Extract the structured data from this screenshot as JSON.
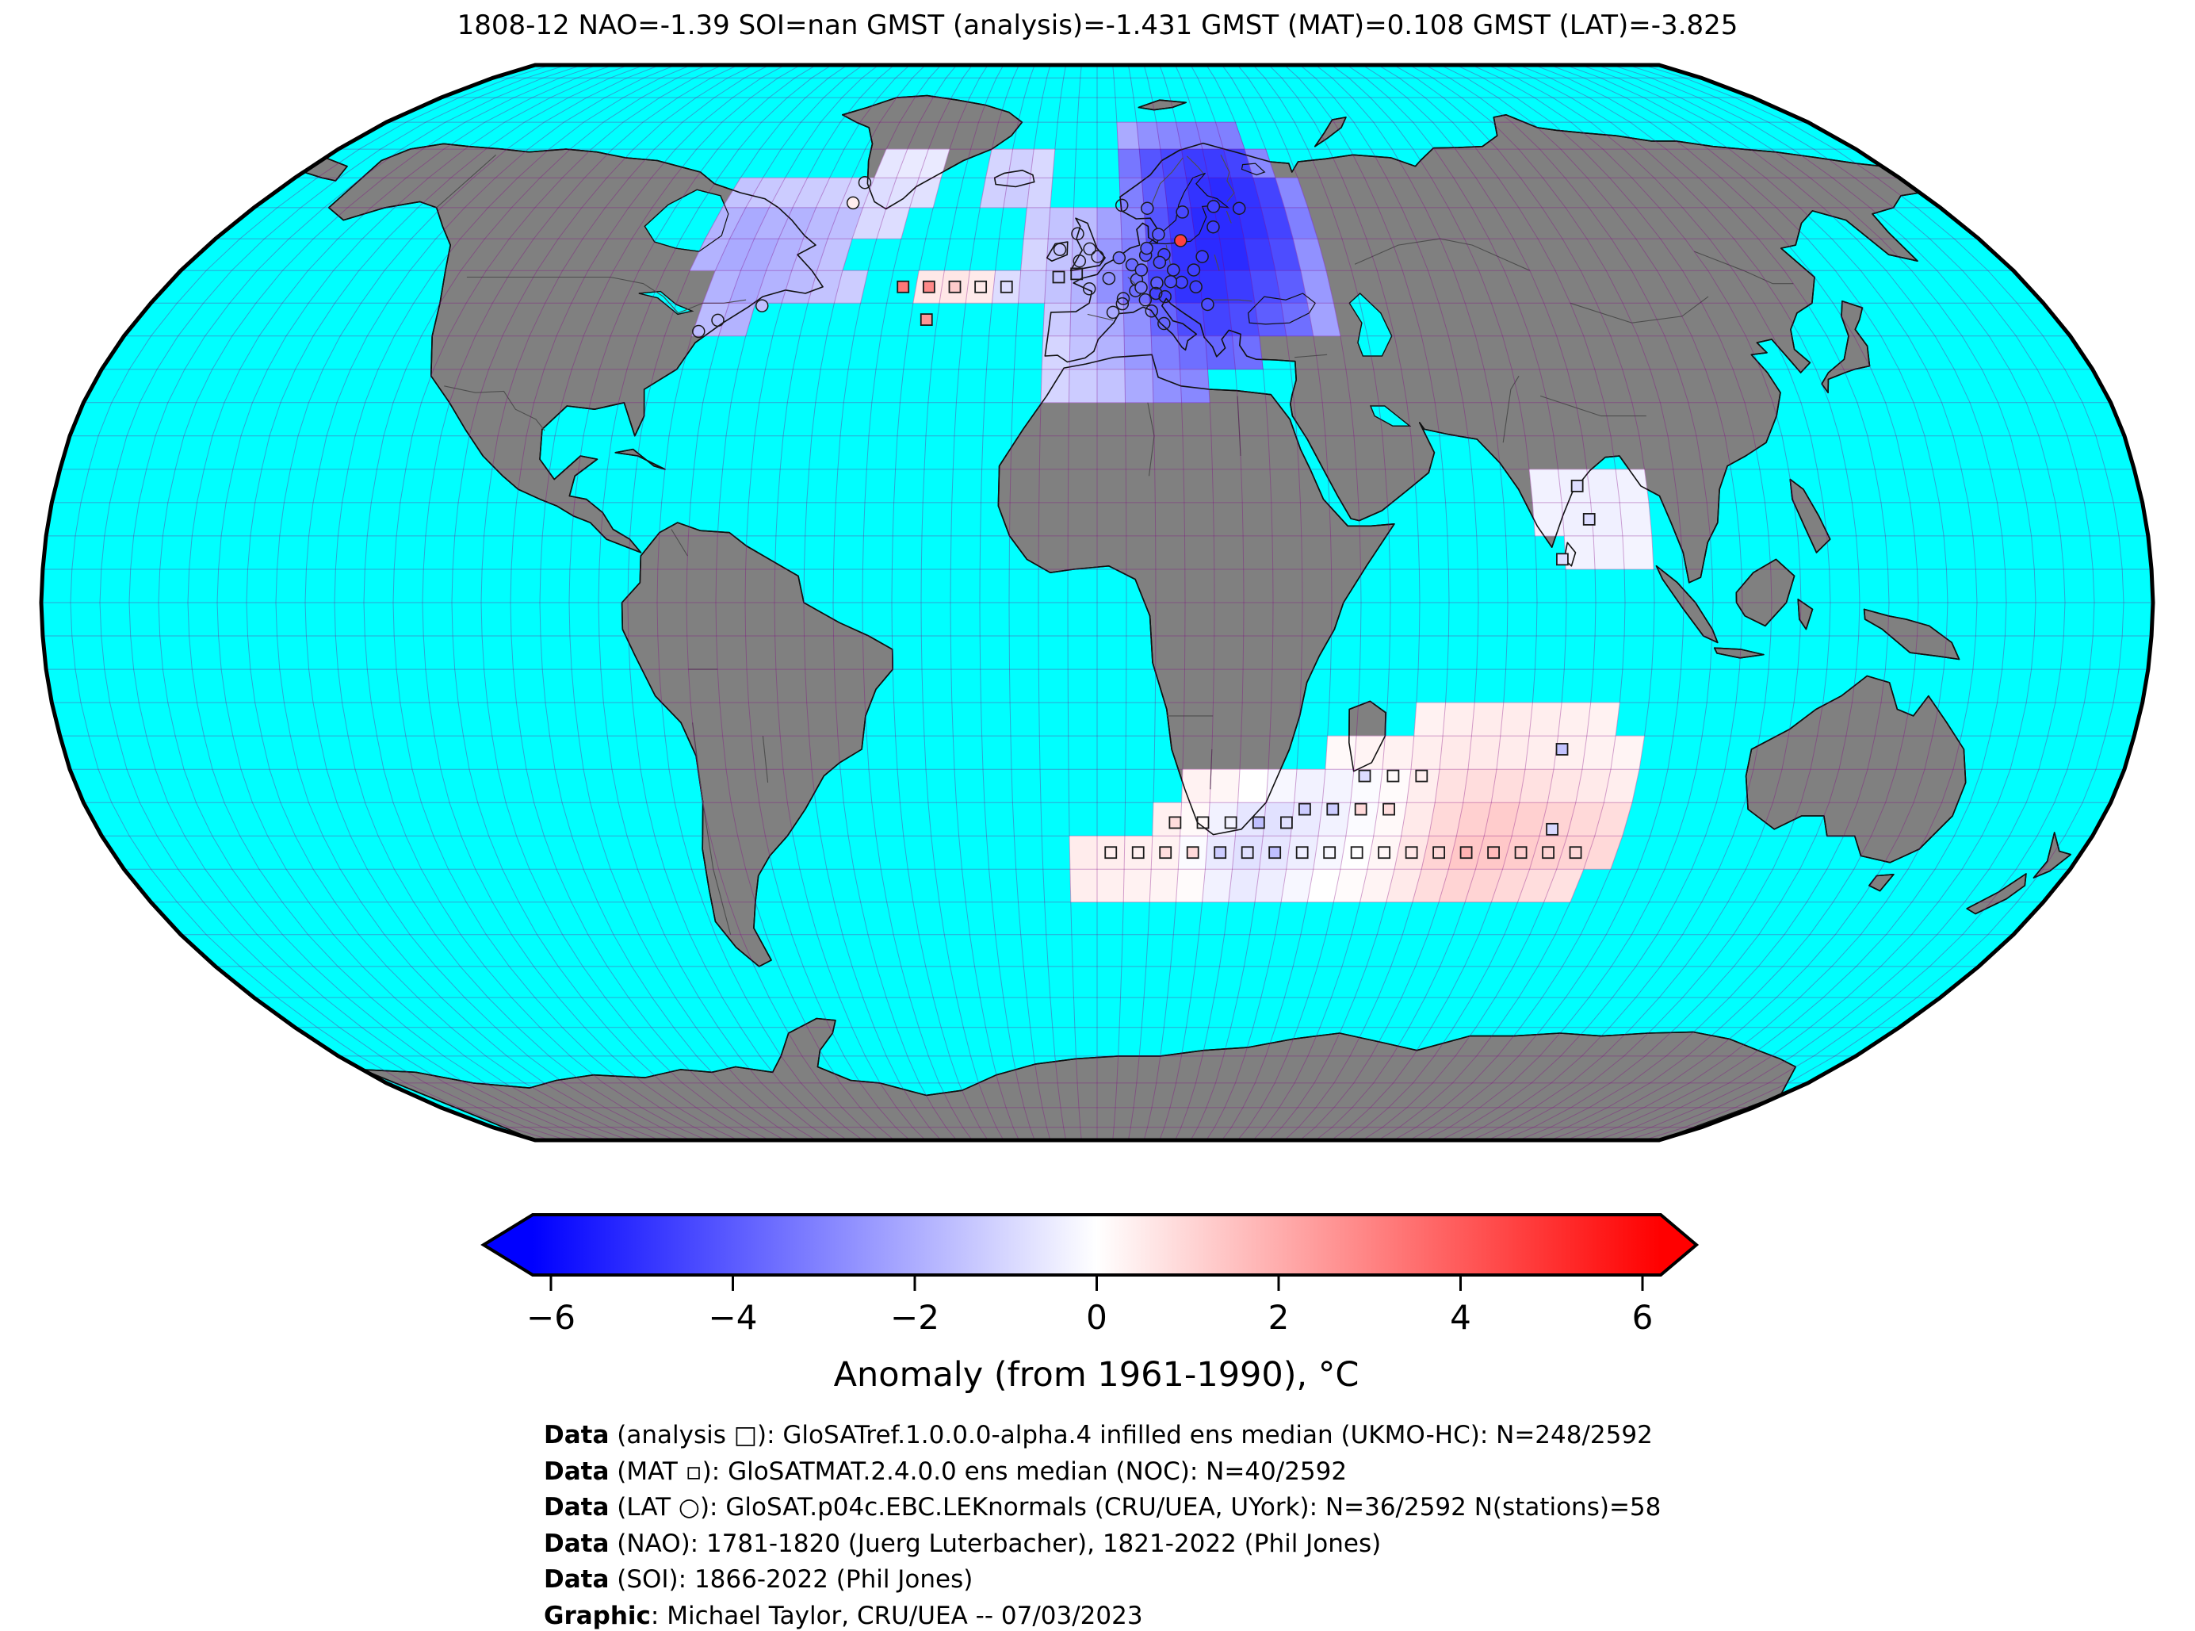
{
  "title": "1808-12 NAO=-1.39 SOI=nan GMST (analysis)=-1.431 GMST (MAT)=0.108 GMST (LAT)=-3.825",
  "map": {
    "ocean_color": "#00FFFF",
    "land_color": "#808080",
    "coastline_color": "#111111",
    "border_color": "#4d4d4d",
    "graticule_color": "#800080",
    "graticule_opacity": 0.35,
    "outline_color": "#000000"
  },
  "colorbar": {
    "label": "Anomaly (from 1961-1990), °C",
    "ticks": [
      "−6",
      "−4",
      "−2",
      "0",
      "2",
      "4",
      "6"
    ],
    "tick_values": [
      -6,
      -4,
      -2,
      0,
      2,
      4,
      6
    ],
    "min": -6,
    "max": 6,
    "colormap": {
      "name": "bwr",
      "neg": "#0000FF",
      "mid": "#FFFFFF",
      "pos": "#FF0000"
    }
  },
  "credits": [
    {
      "label": "Data",
      "text": " (analysis □): GloSATref.1.0.0.0-alpha.4 infilled ens median (UKMO-HC): N=248/2592"
    },
    {
      "label": "Data",
      "text": " (MAT ▫): GloSATMAT.2.4.0.0 ens median (NOC): N=40/2592"
    },
    {
      "label": "Data",
      "text": " (LAT ○): GloSAT.p04c.EBC.LEKnormals (CRU/UEA, UYork): N=36/2592 N(stations)=58"
    },
    {
      "label": "Data",
      "text": " (NAO): 1781-1820 (Juerg Luterbacher), 1821-2022 (Phil Jones)"
    },
    {
      "label": "Data",
      "text": " (SOI): 1866-2022 (Phil Jones)"
    },
    {
      "label": "Graphic",
      "text": ": Michael Taylor, CRU/UEA -- 07/03/2023"
    }
  ],
  "chart_data": {
    "type": "heatmap",
    "projection": "robinson",
    "units": "°C anomaly from 1961-1990",
    "grid_cell_deg": 5,
    "stats": {
      "period": "1808-12",
      "NAO": -1.39,
      "SOI": "nan",
      "GMST_analysis": -1.431,
      "GMST_MAT": 0.108,
      "GMST_LAT": -3.825
    },
    "legend": {
      "analysis_marker": "cell",
      "MAT_marker": "square",
      "LAT_marker": "circle"
    },
    "cells": [
      [
        5,
        70,
        -2.0
      ],
      [
        10,
        70,
        -2.6
      ],
      [
        15,
        70,
        -2.8
      ],
      [
        20,
        70,
        -3.0
      ],
      [
        25,
        70,
        -3.0
      ],
      [
        30,
        70,
        -3.0
      ],
      [
        5,
        65,
        -3.2
      ],
      [
        10,
        65,
        -4.0
      ],
      [
        15,
        65,
        -4.3
      ],
      [
        20,
        65,
        -4.6
      ],
      [
        25,
        65,
        -4.6
      ],
      [
        30,
        65,
        -4.4
      ],
      [
        35,
        65,
        -2.8
      ],
      [
        -25,
        65,
        -1.0
      ],
      [
        -20,
        65,
        -1.1
      ],
      [
        -15,
        65,
        -0.9
      ],
      [
        -25,
        60,
        -1.1
      ],
      [
        -20,
        60,
        -1.2
      ],
      [
        -15,
        60,
        -1.0
      ],
      [
        5,
        60,
        -3.0
      ],
      [
        10,
        60,
        -3.8
      ],
      [
        15,
        60,
        -4.4
      ],
      [
        20,
        60,
        -4.8
      ],
      [
        25,
        60,
        -5.0
      ],
      [
        30,
        60,
        -4.8
      ],
      [
        35,
        60,
        -4.4
      ],
      [
        40,
        60,
        -2.8
      ],
      [
        -15,
        55,
        -1.2
      ],
      [
        -10,
        55,
        -1.4
      ],
      [
        -5,
        55,
        -1.6
      ],
      [
        0,
        55,
        -2.2
      ],
      [
        5,
        55,
        -2.8
      ],
      [
        10,
        55,
        -4.0
      ],
      [
        15,
        55,
        -4.6
      ],
      [
        20,
        55,
        -5.0
      ],
      [
        25,
        55,
        -5.0
      ],
      [
        30,
        55,
        -4.8
      ],
      [
        35,
        55,
        -4.4
      ],
      [
        40,
        55,
        -3.0
      ],
      [
        -15,
        50,
        -1.0
      ],
      [
        -10,
        50,
        -1.4
      ],
      [
        -5,
        50,
        -1.6
      ],
      [
        0,
        50,
        -2.4
      ],
      [
        5,
        50,
        -3.0
      ],
      [
        10,
        50,
        -4.2
      ],
      [
        15,
        50,
        -4.8
      ],
      [
        20,
        50,
        -5.0
      ],
      [
        25,
        50,
        -5.0
      ],
      [
        30,
        50,
        -4.6
      ],
      [
        35,
        50,
        -4.2
      ],
      [
        40,
        50,
        -2.6
      ],
      [
        -35,
        45,
        0.55
      ],
      [
        -30,
        45,
        0.6
      ],
      [
        -25,
        45,
        0.5
      ],
      [
        -20,
        45,
        -0.8
      ],
      [
        -15,
        45,
        -1.2
      ],
      [
        -10,
        45,
        -1.4
      ],
      [
        -5,
        45,
        -1.8
      ],
      [
        0,
        45,
        -2.6
      ],
      [
        5,
        45,
        -3.4
      ],
      [
        10,
        45,
        -4.4
      ],
      [
        15,
        45,
        -4.8
      ],
      [
        20,
        45,
        -4.8
      ],
      [
        25,
        45,
        -4.6
      ],
      [
        30,
        45,
        -4.2
      ],
      [
        35,
        45,
        -3.8
      ],
      [
        40,
        45,
        -2.4
      ],
      [
        -10,
        40,
        -1.2
      ],
      [
        -5,
        40,
        -1.6
      ],
      [
        0,
        40,
        -2.0
      ],
      [
        5,
        40,
        -2.6
      ],
      [
        10,
        40,
        -3.6
      ],
      [
        15,
        40,
        -4.2
      ],
      [
        20,
        40,
        -4.4
      ],
      [
        25,
        40,
        -4.2
      ],
      [
        30,
        40,
        -3.8
      ],
      [
        35,
        40,
        -3.4
      ],
      [
        40,
        40,
        -2.2
      ],
      [
        -10,
        35,
        -1.0
      ],
      [
        -5,
        35,
        -1.4
      ],
      [
        0,
        35,
        -1.8
      ],
      [
        5,
        35,
        -2.4
      ],
      [
        10,
        35,
        -3.0
      ],
      [
        15,
        35,
        -3.4
      ],
      [
        20,
        35,
        -3.6
      ],
      [
        25,
        35,
        -3.4
      ],
      [
        -10,
        30,
        -1.0
      ],
      [
        -5,
        30,
        -1.2
      ],
      [
        0,
        30,
        -1.4
      ],
      [
        5,
        30,
        -2.0
      ],
      [
        10,
        30,
        -2.6
      ],
      [
        15,
        30,
        -2.8
      ],
      [
        -80,
        60,
        -1.4
      ],
      [
        -75,
        60,
        -1.3
      ],
      [
        -70,
        60,
        -1.2
      ],
      [
        -65,
        60,
        -1.2
      ],
      [
        -60,
        60,
        -1.1
      ],
      [
        -55,
        60,
        -1.0
      ],
      [
        -80,
        55,
        -1.8
      ],
      [
        -75,
        55,
        -2.0
      ],
      [
        -70,
        55,
        -1.8
      ],
      [
        -65,
        55,
        -1.8
      ],
      [
        -60,
        55,
        -1.6
      ],
      [
        -55,
        55,
        -1.5
      ],
      [
        -80,
        50,
        -1.8
      ],
      [
        -75,
        50,
        -2.0
      ],
      [
        -70,
        50,
        -2.0
      ],
      [
        -65,
        50,
        -1.8
      ],
      [
        -60,
        50,
        -1.6
      ],
      [
        -55,
        50,
        -1.4
      ],
      [
        -75,
        45,
        -1.8
      ],
      [
        -70,
        45,
        -2.0
      ],
      [
        -65,
        45,
        -1.8
      ],
      [
        -60,
        45,
        -1.6
      ],
      [
        -55,
        45,
        -1.4
      ],
      [
        -50,
        45,
        -1.2
      ],
      [
        -75,
        40,
        -1.6
      ],
      [
        -70,
        40,
        -1.8
      ],
      [
        -50,
        60,
        -0.8
      ],
      [
        -45,
        60,
        -0.7
      ],
      [
        -40,
        60,
        -0.7
      ],
      [
        -50,
        65,
        -0.6
      ],
      [
        -45,
        65,
        -0.5
      ],
      [
        -40,
        65,
        -0.5
      ],
      [
        -50,
        55,
        -0.9
      ],
      [
        -45,
        55,
        -0.8
      ],
      [
        75,
        15,
        -0.3
      ],
      [
        80,
        15,
        -0.35
      ],
      [
        85,
        15,
        -0.35
      ],
      [
        90,
        15,
        -0.3
      ],
      [
        75,
        10,
        -0.3
      ],
      [
        80,
        10,
        -0.35
      ],
      [
        85,
        10,
        -0.35
      ],
      [
        90,
        10,
        -0.3
      ],
      [
        80,
        5,
        -0.3
      ],
      [
        85,
        5,
        -0.3
      ],
      [
        90,
        5,
        -0.25
      ],
      [
        55,
        -20,
        0.3
      ],
      [
        60,
        -20,
        0.4
      ],
      [
        65,
        -20,
        0.45
      ],
      [
        70,
        -20,
        0.45
      ],
      [
        75,
        -20,
        0.4
      ],
      [
        80,
        -20,
        0.35
      ],
      [
        85,
        -20,
        0.3
      ],
      [
        40,
        -25,
        0.15
      ],
      [
        45,
        -25,
        0.25
      ],
      [
        50,
        -25,
        0.3
      ],
      [
        55,
        -25,
        0.4
      ],
      [
        60,
        -25,
        0.5
      ],
      [
        65,
        -25,
        0.5
      ],
      [
        70,
        -25,
        0.45
      ],
      [
        75,
        -25,
        0.4
      ],
      [
        80,
        -25,
        0.35
      ],
      [
        85,
        -25,
        0.3
      ],
      [
        90,
        -25,
        0.25
      ],
      [
        15,
        -30,
        0.3
      ],
      [
        20,
        -30,
        0.2
      ],
      [
        25,
        -30,
        0.0
      ],
      [
        30,
        -30,
        -0.2
      ],
      [
        35,
        -30,
        -0.3
      ],
      [
        40,
        -30,
        -0.25
      ],
      [
        45,
        -30,
        -0.1
      ],
      [
        50,
        -30,
        0.1
      ],
      [
        55,
        -30,
        0.4
      ],
      [
        60,
        -30,
        0.7
      ],
      [
        65,
        -30,
        0.8
      ],
      [
        70,
        -30,
        0.8
      ],
      [
        75,
        -30,
        0.7
      ],
      [
        80,
        -30,
        0.6
      ],
      [
        85,
        -30,
        0.5
      ],
      [
        90,
        -30,
        0.4
      ],
      [
        10,
        -35,
        0.35
      ],
      [
        15,
        -35,
        0.15
      ],
      [
        20,
        -35,
        -0.3
      ],
      [
        25,
        -35,
        -0.6
      ],
      [
        30,
        -35,
        -0.7
      ],
      [
        35,
        -35,
        -0.5
      ],
      [
        40,
        -35,
        -0.3
      ],
      [
        45,
        -35,
        -0.1
      ],
      [
        50,
        -35,
        0.15
      ],
      [
        55,
        -35,
        0.5
      ],
      [
        60,
        -35,
        0.9
      ],
      [
        65,
        -35,
        1.1
      ],
      [
        70,
        -35,
        1.2
      ],
      [
        75,
        -35,
        1.1
      ],
      [
        80,
        -35,
        1.0
      ],
      [
        85,
        -35,
        0.9
      ],
      [
        90,
        -35,
        0.8
      ],
      [
        -5,
        -40,
        0.45
      ],
      [
        0,
        -40,
        0.4
      ],
      [
        5,
        -40,
        0.35
      ],
      [
        10,
        -40,
        0.3
      ],
      [
        15,
        -40,
        -0.1
      ],
      [
        20,
        -40,
        -0.5
      ],
      [
        25,
        -40,
        -0.7
      ],
      [
        30,
        -40,
        -0.6
      ],
      [
        35,
        -40,
        -0.4
      ],
      [
        40,
        -40,
        -0.2
      ],
      [
        45,
        -40,
        0.0
      ],
      [
        50,
        -40,
        0.2
      ],
      [
        55,
        -40,
        0.6
      ],
      [
        60,
        -40,
        1.0
      ],
      [
        65,
        -40,
        1.3
      ],
      [
        70,
        -40,
        1.3
      ],
      [
        75,
        -40,
        1.2
      ],
      [
        80,
        -40,
        1.1
      ],
      [
        85,
        -40,
        1.0
      ],
      [
        90,
        -40,
        0.9
      ],
      [
        -5,
        -45,
        0.4
      ],
      [
        0,
        -45,
        0.35
      ],
      [
        5,
        -45,
        0.3
      ],
      [
        10,
        -45,
        0.25
      ],
      [
        15,
        -45,
        0.1
      ],
      [
        20,
        -45,
        -0.3
      ],
      [
        25,
        -45,
        -0.5
      ],
      [
        30,
        -45,
        -0.4
      ],
      [
        35,
        -45,
        -0.2
      ],
      [
        40,
        -45,
        0.0
      ],
      [
        45,
        -45,
        0.1
      ],
      [
        50,
        -45,
        0.25
      ],
      [
        55,
        -45,
        0.5
      ],
      [
        60,
        -45,
        0.8
      ],
      [
        65,
        -45,
        1.0
      ],
      [
        70,
        -45,
        1.0
      ],
      [
        75,
        -45,
        0.9
      ],
      [
        80,
        -45,
        0.8
      ],
      [
        85,
        -45,
        0.7
      ]
    ],
    "mat_markers": [
      [
        -37.5,
        47.5,
        3.2
      ],
      [
        -32.5,
        47.5,
        2.8
      ],
      [
        -27.5,
        47.5,
        1.2
      ],
      [
        -22.5,
        47.5,
        null
      ],
      [
        -17.5,
        47.5,
        null
      ],
      [
        -32,
        42.5,
        2.5
      ],
      [
        -7.5,
        49,
        null
      ],
      [
        -4,
        49.5,
        null
      ],
      [
        83,
        17.5,
        -0.8
      ],
      [
        84.5,
        12.5,
        -0.8
      ],
      [
        79.5,
        6.5,
        -0.8
      ],
      [
        81,
        -22,
        -1.4
      ],
      [
        47,
        -26,
        -0.8
      ],
      [
        52,
        -26,
        null
      ],
      [
        57,
        -26,
        null
      ],
      [
        37,
        -31,
        -1.2
      ],
      [
        42,
        -31,
        -1.2
      ],
      [
        47,
        -31,
        0.9
      ],
      [
        52,
        -31,
        0.8
      ],
      [
        14,
        -33,
        0.8
      ],
      [
        19,
        -33,
        null
      ],
      [
        24,
        -33,
        null
      ],
      [
        29,
        -33,
        -1.5
      ],
      [
        34,
        -33,
        null
      ],
      [
        82,
        -34,
        -0.9
      ],
      [
        2.5,
        -37.5,
        null
      ],
      [
        7.5,
        -37.5,
        null
      ],
      [
        12.5,
        -37.5,
        0.8
      ],
      [
        17.5,
        -37.5,
        0.9
      ],
      [
        22.5,
        -37.5,
        -1.2
      ],
      [
        27.5,
        -37.5,
        null
      ],
      [
        32.5,
        -37.5,
        -1.5
      ],
      [
        37.5,
        -37.5,
        null
      ],
      [
        42.5,
        -37.5,
        null
      ],
      [
        47.5,
        -37.5,
        null
      ],
      [
        52.5,
        -37.5,
        null
      ],
      [
        57.5,
        -37.5,
        null
      ],
      [
        62.5,
        -37.5,
        0.9
      ],
      [
        67.5,
        -37.5,
        1.8
      ],
      [
        72.5,
        -37.5,
        1.6
      ],
      [
        77.5,
        -37.5,
        null
      ],
      [
        82.5,
        -37.5,
        1.0
      ],
      [
        87.5,
        -37.5,
        0.9
      ]
    ],
    "lat_stations": [
      [
        -3.5,
        51.5,
        null
      ],
      [
        -1.5,
        53.4,
        null
      ],
      [
        -4,
        55.8,
        null
      ],
      [
        0.1,
        52.2,
        null
      ],
      [
        -7.5,
        53.3,
        null
      ],
      [
        2.3,
        48.8,
        null
      ],
      [
        -1.5,
        47.2,
        null
      ],
      [
        5,
        45.7,
        null
      ],
      [
        3,
        43.6,
        null
      ],
      [
        7.7,
        48.6,
        null
      ],
      [
        4.8,
        44.9,
        null
      ],
      [
        4.4,
        52,
        -3.2
      ],
      [
        6.9,
        50.9,
        -3.5
      ],
      [
        8.7,
        50.1,
        -3.6
      ],
      [
        9.7,
        52.4,
        -3.9
      ],
      [
        13.4,
        52.5,
        -4.4
      ],
      [
        11.6,
        48.1,
        -3.8
      ],
      [
        12.4,
        51.3,
        -4.2
      ],
      [
        10,
        53.5,
        -3.8
      ],
      [
        7.4,
        46.9,
        null
      ],
      [
        8.5,
        47.4,
        -3.2
      ],
      [
        16.4,
        48.2,
        -4.4
      ],
      [
        14.3,
        48.3,
        -4.2
      ],
      [
        15,
        50.1,
        -4.3
      ],
      [
        9.2,
        45.5,
        null
      ],
      [
        11.3,
        46.5,
        null
      ],
      [
        13,
        46,
        null
      ],
      [
        12.5,
        41.9,
        null
      ],
      [
        10.3,
        43.8,
        null
      ],
      [
        17,
        54.7,
        4.5
      ],
      [
        21,
        52.2,
        -4.6
      ],
      [
        19,
        50.1,
        -4.5
      ],
      [
        24.1,
        56.9,
        -4.6
      ],
      [
        30.3,
        59.9,
        -4.7
      ],
      [
        10.7,
        59.9,
        -3.6
      ],
      [
        18.1,
        59.3,
        -4.3
      ],
      [
        24.9,
        60.2,
        -4.5
      ],
      [
        5.3,
        60.4,
        null
      ],
      [
        12.6,
        55.7,
        -3.9
      ],
      [
        19.1,
        47.5,
        -4.5
      ],
      [
        21,
        44.8,
        -4.2
      ],
      [
        -51.7,
        64.2,
        null
      ],
      [
        -52.5,
        60.8,
        0.4
      ],
      [
        -63.6,
        44.6,
        -1.5
      ],
      [
        -74,
        40.7,
        null
      ],
      [
        -71.1,
        42.4,
        null
      ]
    ]
  }
}
